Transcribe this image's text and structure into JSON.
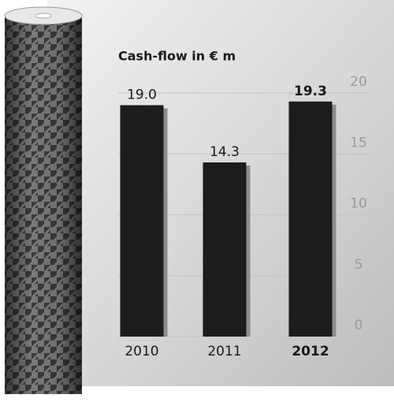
{
  "chart_data": {
    "type": "bar",
    "title": "Cash-flow in € m",
    "categories": [
      "2010",
      "2011",
      "2012"
    ],
    "values": [
      19.0,
      14.3,
      19.3
    ],
    "value_labels": [
      "19.0",
      "14.3",
      "19.3"
    ],
    "color": "#1e1b1c",
    "ylim": [
      0,
      20
    ],
    "yticks": [
      0,
      5,
      10,
      15,
      20
    ],
    "grid": true
  }
}
